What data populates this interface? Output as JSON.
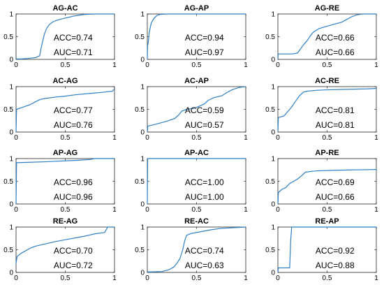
{
  "colors": {
    "curve": "#2f7fc4",
    "axes": "#262626",
    "background": "#ffffff"
  },
  "chart_data": [
    {
      "type": "line",
      "title": "AG-AC",
      "xlim": [
        0,
        1
      ],
      "ylim": [
        0,
        1
      ],
      "grid": false,
      "xticks": [
        "0",
        "0.5",
        "1"
      ],
      "yticks": [
        "0",
        "0.5",
        "1"
      ],
      "annotations": [
        "ACC=0.74",
        "AUC=0.71"
      ],
      "series": [
        {
          "x": [
            0,
            0.05,
            0.12,
            0.2,
            0.24,
            0.25,
            0.27,
            0.29,
            0.31,
            0.34,
            0.37,
            0.4,
            0.43,
            0.46,
            0.52,
            0.6,
            0.7,
            0.8,
            0.95,
            1
          ],
          "y": [
            0.01,
            0.01,
            0.02,
            0.04,
            0.08,
            0.2,
            0.4,
            0.57,
            0.68,
            0.77,
            0.82,
            0.85,
            0.87,
            0.89,
            0.92,
            0.96,
            0.99,
            1,
            1,
            1
          ]
        }
      ]
    },
    {
      "type": "line",
      "title": "AG-AP",
      "xlim": [
        0,
        1
      ],
      "ylim": [
        0,
        1
      ],
      "grid": false,
      "xticks": [
        "0",
        "0.5",
        "1"
      ],
      "yticks": [
        "0",
        "0.5",
        "1"
      ],
      "annotations": [
        "ACC=0.94",
        "AUC=0.97"
      ],
      "series": [
        {
          "x": [
            0,
            0.003,
            0.01,
            0.02,
            0.03,
            0.04,
            0.06,
            0.08,
            0.1,
            0.13,
            0.2,
            0.5,
            1
          ],
          "y": [
            0,
            0.3,
            0.38,
            0.6,
            0.7,
            0.8,
            0.88,
            0.93,
            0.97,
            0.99,
            1,
            1,
            1
          ]
        }
      ]
    },
    {
      "type": "line",
      "title": "AG-RE",
      "xlim": [
        0,
        1
      ],
      "ylim": [
        0,
        1
      ],
      "grid": false,
      "xticks": [
        "0",
        "0.5",
        "1"
      ],
      "yticks": [
        "0",
        "0.5",
        "1"
      ],
      "annotations": [
        "ACC=0.66",
        "AUC=0.66"
      ],
      "series": [
        {
          "x": [
            0,
            0.003,
            0.15,
            0.2,
            0.22,
            0.26,
            0.3,
            0.33,
            0.36,
            0.42,
            0.5,
            0.58,
            0.65,
            0.7,
            0.75,
            0.8,
            0.86,
            0.93,
            1
          ],
          "y": [
            0,
            0.12,
            0.12,
            0.14,
            0.2,
            0.32,
            0.42,
            0.52,
            0.6,
            0.68,
            0.73,
            0.78,
            0.82,
            0.88,
            0.94,
            0.98,
            1,
            1,
            1
          ]
        }
      ]
    },
    {
      "type": "line",
      "title": "AC-AG",
      "xlim": [
        0,
        1
      ],
      "ylim": [
        0,
        1
      ],
      "grid": false,
      "xticks": [
        "0",
        "0.5",
        "1"
      ],
      "yticks": [
        "0",
        "0.5",
        "1"
      ],
      "annotations": [
        "ACC=0.77",
        "AUC=0.76"
      ],
      "series": [
        {
          "x": [
            0,
            0.005,
            0.06,
            0.1,
            0.14,
            0.2,
            0.25,
            0.3,
            0.4,
            0.5,
            0.6,
            0.7,
            0.8,
            0.9,
            0.98,
            1
          ],
          "y": [
            0,
            0.5,
            0.54,
            0.57,
            0.6,
            0.67,
            0.72,
            0.74,
            0.77,
            0.79,
            0.82,
            0.84,
            0.86,
            0.88,
            0.9,
            0.95
          ]
        }
      ]
    },
    {
      "type": "line",
      "title": "AC-AP",
      "xlim": [
        0,
        1
      ],
      "ylim": [
        0,
        1
      ],
      "grid": false,
      "xticks": [
        "0",
        "0.5",
        "1"
      ],
      "yticks": [
        "0",
        "0.5",
        "1"
      ],
      "annotations": [
        "ACC=0.59",
        "AUC=0.57"
      ],
      "series": [
        {
          "x": [
            0,
            0.005,
            0.1,
            0.2,
            0.28,
            0.32,
            0.35,
            0.4,
            0.47,
            0.52,
            0.58,
            0.62,
            0.68,
            0.76,
            0.8,
            0.86,
            0.93,
            1
          ],
          "y": [
            0,
            0.13,
            0.18,
            0.24,
            0.3,
            0.38,
            0.46,
            0.5,
            0.52,
            0.56,
            0.62,
            0.7,
            0.76,
            0.8,
            0.86,
            0.93,
            0.98,
            1
          ]
        }
      ]
    },
    {
      "type": "line",
      "title": "AC-RE",
      "xlim": [
        0,
        1
      ],
      "ylim": [
        0,
        1
      ],
      "grid": false,
      "xticks": [
        "0",
        "0.5",
        "1"
      ],
      "yticks": [
        "0",
        "0.5",
        "1"
      ],
      "annotations": [
        "ACC=0.81",
        "AUC=0.81"
      ],
      "series": [
        {
          "x": [
            0,
            0.005,
            0.06,
            0.1,
            0.14,
            0.18,
            0.22,
            0.26,
            0.3,
            0.4,
            0.5,
            0.7,
            0.9,
            1
          ],
          "y": [
            0,
            0.32,
            0.35,
            0.45,
            0.55,
            0.68,
            0.8,
            0.88,
            0.9,
            0.92,
            0.93,
            0.94,
            0.95,
            0.96
          ]
        }
      ]
    },
    {
      "type": "line",
      "title": "AP-AG",
      "xlim": [
        0,
        1
      ],
      "ylim": [
        0,
        1
      ],
      "grid": false,
      "xticks": [
        "0",
        "0.5",
        "1"
      ],
      "yticks": [
        "0",
        "0.5",
        "1"
      ],
      "annotations": [
        "ACC=0.96",
        "AUC=0.96"
      ],
      "series": [
        {
          "x": [
            0,
            0.005,
            0.3,
            0.6,
            0.75,
            0.8,
            1
          ],
          "y": [
            0,
            0.91,
            0.93,
            0.96,
            0.98,
            1,
            1
          ]
        }
      ]
    },
    {
      "type": "line",
      "title": "AP-AC",
      "xlim": [
        0,
        1
      ],
      "ylim": [
        0,
        1
      ],
      "grid": false,
      "xticks": [
        "0",
        "0.5",
        "1"
      ],
      "yticks": [
        "0",
        "0.5",
        "1"
      ],
      "annotations": [
        "ACC=1.00",
        "AUC=1.00"
      ],
      "series": [
        {
          "x": [
            0,
            0.004,
            1
          ],
          "y": [
            0,
            1,
            1
          ]
        }
      ]
    },
    {
      "type": "line",
      "title": "AP-RE",
      "xlim": [
        0,
        1
      ],
      "ylim": [
        0,
        1
      ],
      "grid": false,
      "xticks": [
        "0",
        "0.5",
        "1"
      ],
      "yticks": [
        "0",
        "0.5",
        "1"
      ],
      "annotations": [
        "ACC=0.69",
        "AUC=0.66"
      ],
      "series": [
        {
          "x": [
            0,
            0.005,
            0.04,
            0.08,
            0.12,
            0.16,
            0.2,
            0.24,
            0.28,
            0.35,
            0.4,
            0.55,
            0.75,
            1
          ],
          "y": [
            0,
            0.25,
            0.32,
            0.36,
            0.45,
            0.5,
            0.55,
            0.62,
            0.7,
            0.72,
            0.73,
            0.74,
            0.75,
            0.76
          ]
        }
      ]
    },
    {
      "type": "line",
      "title": "RE-AG",
      "xlim": [
        0,
        1
      ],
      "ylim": [
        0,
        1
      ],
      "grid": false,
      "xticks": [
        "0",
        "0.5",
        "1"
      ],
      "yticks": [
        "0",
        "0.5",
        "1"
      ],
      "annotations": [
        "ACC=0.70",
        "AUC=0.72"
      ],
      "series": [
        {
          "x": [
            0,
            0.01,
            0.05,
            0.1,
            0.15,
            0.2,
            0.3,
            0.4,
            0.5,
            0.6,
            0.7,
            0.8,
            0.9,
            0.93,
            1
          ],
          "y": [
            0.2,
            0.35,
            0.42,
            0.48,
            0.54,
            0.58,
            0.63,
            0.68,
            0.72,
            0.76,
            0.8,
            0.85,
            0.88,
            1,
            1
          ]
        }
      ]
    },
    {
      "type": "line",
      "title": "RE-AC",
      "xlim": [
        0,
        1
      ],
      "ylim": [
        0,
        1
      ],
      "grid": false,
      "xticks": [
        "0",
        "0.5",
        "1"
      ],
      "yticks": [
        "0",
        "0.5",
        "1"
      ],
      "annotations": [
        "ACC=0.74",
        "AUC=0.63"
      ],
      "series": [
        {
          "x": [
            0,
            0.15,
            0.22,
            0.27,
            0.3,
            0.33,
            0.36,
            0.38,
            0.4,
            0.45,
            0.55,
            0.65,
            0.75,
            1
          ],
          "y": [
            0.01,
            0.02,
            0.06,
            0.12,
            0.2,
            0.3,
            0.5,
            0.7,
            0.82,
            0.86,
            0.9,
            0.94,
            0.97,
            1
          ]
        }
      ]
    },
    {
      "type": "line",
      "title": "RE-AP",
      "xlim": [
        0,
        1
      ],
      "ylim": [
        0,
        1
      ],
      "grid": false,
      "xticks": [
        "0",
        "0.5",
        "1"
      ],
      "yticks": [
        "0",
        "0.5",
        "1"
      ],
      "annotations": [
        "ACC=0.92",
        "AUC=0.88"
      ],
      "series": [
        {
          "x": [
            0,
            0.005,
            0.12,
            0.13,
            0.14,
            0.3,
            1
          ],
          "y": [
            0,
            0.1,
            0.1,
            0.7,
            1,
            1,
            1
          ]
        }
      ]
    }
  ]
}
